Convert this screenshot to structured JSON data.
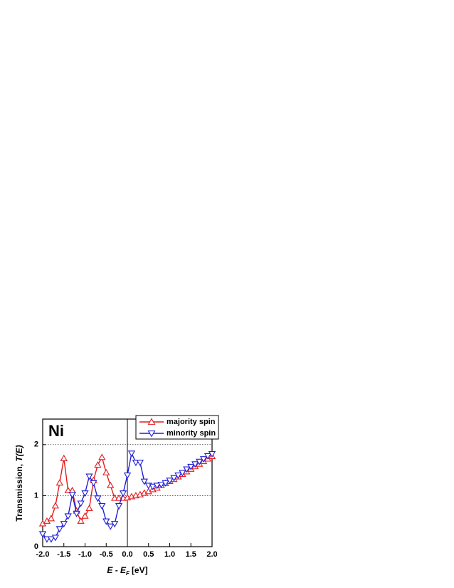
{
  "chart_data": {
    "type": "line",
    "annotation": "Ni",
    "x_label": {
      "main": "E - E",
      "sub": "F",
      "unit": "[eV]"
    },
    "y_label": {
      "main": "Transmission, ",
      "italic": "T(E)"
    },
    "x": [
      -2.0,
      -1.9,
      -1.8,
      -1.7,
      -1.6,
      -1.5,
      -1.4,
      -1.3,
      -1.2,
      -1.1,
      -1.0,
      -0.9,
      -0.8,
      -0.7,
      -0.6,
      -0.5,
      -0.4,
      -0.3,
      -0.2,
      -0.1,
      0.0,
      0.1,
      0.2,
      0.3,
      0.4,
      0.5,
      0.6,
      0.7,
      0.8,
      0.9,
      1.0,
      1.1,
      1.2,
      1.3,
      1.4,
      1.5,
      1.6,
      1.7,
      1.8,
      1.9,
      2.0
    ],
    "series": [
      {
        "name": "majority spin",
        "color": "#e41a1c",
        "marker": "triangle-up",
        "values": [
          0.45,
          0.5,
          0.55,
          0.8,
          1.25,
          1.73,
          1.1,
          1.1,
          0.7,
          0.5,
          0.6,
          0.75,
          1.3,
          1.6,
          1.75,
          1.45,
          1.2,
          0.95,
          0.95,
          0.95,
          0.96,
          0.98,
          1.0,
          1.02,
          1.05,
          1.08,
          1.12,
          1.15,
          1.2,
          1.24,
          1.28,
          1.32,
          1.37,
          1.42,
          1.47,
          1.52,
          1.57,
          1.62,
          1.67,
          1.72,
          1.77
        ]
      },
      {
        "name": "minority spin",
        "color": "#1f1fd6",
        "marker": "triangle-down",
        "values": [
          0.25,
          0.15,
          0.15,
          0.18,
          0.35,
          0.45,
          0.6,
          1.02,
          0.65,
          0.85,
          1.05,
          1.38,
          1.25,
          0.95,
          0.8,
          0.5,
          0.4,
          0.45,
          0.8,
          1.05,
          1.4,
          1.83,
          1.65,
          1.65,
          1.28,
          1.2,
          1.18,
          1.2,
          1.22,
          1.25,
          1.3,
          1.35,
          1.4,
          1.45,
          1.52,
          1.57,
          1.62,
          1.67,
          1.72,
          1.78,
          1.82
        ]
      }
    ],
    "xlim": [
      -2.0,
      2.0
    ],
    "xticks": [
      {
        "value": -2,
        "label": "-2.0"
      },
      {
        "value": -1.5,
        "label": "-1.5"
      },
      {
        "value": -1,
        "label": "-1.0"
      },
      -0.5,
      {
        "value": 0,
        "label": "0.0"
      },
      0.5,
      {
        "value": 1,
        "label": "1.0"
      },
      1.5,
      {
        "value": 2,
        "label": "2.0"
      }
    ],
    "ylim": [
      0,
      2.5
    ],
    "yticks": [
      0,
      1,
      2
    ],
    "grid": "dotted-y",
    "zero_line_x": true,
    "legend": "top-right"
  }
}
